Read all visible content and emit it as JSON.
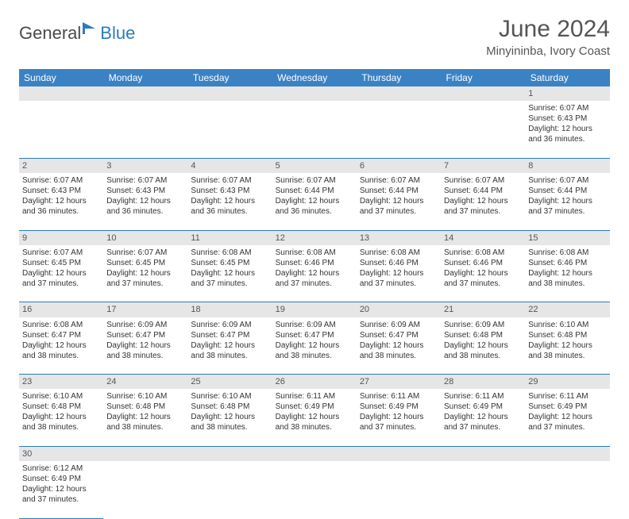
{
  "brand": {
    "main": "General",
    "sub": "Blue",
    "icon_color": "#2b7bbf",
    "main_color": "#4a4a4a"
  },
  "title": "June 2024",
  "location": "Minyininba, Ivory Coast",
  "header_bg": "#3b82c4",
  "header_fg": "#ffffff",
  "daynum_bg": "#e6e6e6",
  "border_color": "#2b7bbf",
  "text_color": "#333333",
  "title_fontsize": 30,
  "location_fontsize": 15,
  "cell_fontsize": 10,
  "daynum_fontsize": 11,
  "columns": [
    "Sunday",
    "Monday",
    "Tuesday",
    "Wednesday",
    "Thursday",
    "Friday",
    "Saturday"
  ],
  "weeks": [
    [
      null,
      null,
      null,
      null,
      null,
      null,
      {
        "n": "1",
        "sr": "Sunrise: 6:07 AM",
        "ss": "Sunset: 6:43 PM",
        "d1": "Daylight: 12 hours",
        "d2": "and 36 minutes."
      }
    ],
    [
      {
        "n": "2",
        "sr": "Sunrise: 6:07 AM",
        "ss": "Sunset: 6:43 PM",
        "d1": "Daylight: 12 hours",
        "d2": "and 36 minutes."
      },
      {
        "n": "3",
        "sr": "Sunrise: 6:07 AM",
        "ss": "Sunset: 6:43 PM",
        "d1": "Daylight: 12 hours",
        "d2": "and 36 minutes."
      },
      {
        "n": "4",
        "sr": "Sunrise: 6:07 AM",
        "ss": "Sunset: 6:43 PM",
        "d1": "Daylight: 12 hours",
        "d2": "and 36 minutes."
      },
      {
        "n": "5",
        "sr": "Sunrise: 6:07 AM",
        "ss": "Sunset: 6:44 PM",
        "d1": "Daylight: 12 hours",
        "d2": "and 36 minutes."
      },
      {
        "n": "6",
        "sr": "Sunrise: 6:07 AM",
        "ss": "Sunset: 6:44 PM",
        "d1": "Daylight: 12 hours",
        "d2": "and 37 minutes."
      },
      {
        "n": "7",
        "sr": "Sunrise: 6:07 AM",
        "ss": "Sunset: 6:44 PM",
        "d1": "Daylight: 12 hours",
        "d2": "and 37 minutes."
      },
      {
        "n": "8",
        "sr": "Sunrise: 6:07 AM",
        "ss": "Sunset: 6:44 PM",
        "d1": "Daylight: 12 hours",
        "d2": "and 37 minutes."
      }
    ],
    [
      {
        "n": "9",
        "sr": "Sunrise: 6:07 AM",
        "ss": "Sunset: 6:45 PM",
        "d1": "Daylight: 12 hours",
        "d2": "and 37 minutes."
      },
      {
        "n": "10",
        "sr": "Sunrise: 6:07 AM",
        "ss": "Sunset: 6:45 PM",
        "d1": "Daylight: 12 hours",
        "d2": "and 37 minutes."
      },
      {
        "n": "11",
        "sr": "Sunrise: 6:08 AM",
        "ss": "Sunset: 6:45 PM",
        "d1": "Daylight: 12 hours",
        "d2": "and 37 minutes."
      },
      {
        "n": "12",
        "sr": "Sunrise: 6:08 AM",
        "ss": "Sunset: 6:46 PM",
        "d1": "Daylight: 12 hours",
        "d2": "and 37 minutes."
      },
      {
        "n": "13",
        "sr": "Sunrise: 6:08 AM",
        "ss": "Sunset: 6:46 PM",
        "d1": "Daylight: 12 hours",
        "d2": "and 37 minutes."
      },
      {
        "n": "14",
        "sr": "Sunrise: 6:08 AM",
        "ss": "Sunset: 6:46 PM",
        "d1": "Daylight: 12 hours",
        "d2": "and 37 minutes."
      },
      {
        "n": "15",
        "sr": "Sunrise: 6:08 AM",
        "ss": "Sunset: 6:46 PM",
        "d1": "Daylight: 12 hours",
        "d2": "and 38 minutes."
      }
    ],
    [
      {
        "n": "16",
        "sr": "Sunrise: 6:08 AM",
        "ss": "Sunset: 6:47 PM",
        "d1": "Daylight: 12 hours",
        "d2": "and 38 minutes."
      },
      {
        "n": "17",
        "sr": "Sunrise: 6:09 AM",
        "ss": "Sunset: 6:47 PM",
        "d1": "Daylight: 12 hours",
        "d2": "and 38 minutes."
      },
      {
        "n": "18",
        "sr": "Sunrise: 6:09 AM",
        "ss": "Sunset: 6:47 PM",
        "d1": "Daylight: 12 hours",
        "d2": "and 38 minutes."
      },
      {
        "n": "19",
        "sr": "Sunrise: 6:09 AM",
        "ss": "Sunset: 6:47 PM",
        "d1": "Daylight: 12 hours",
        "d2": "and 38 minutes."
      },
      {
        "n": "20",
        "sr": "Sunrise: 6:09 AM",
        "ss": "Sunset: 6:47 PM",
        "d1": "Daylight: 12 hours",
        "d2": "and 38 minutes."
      },
      {
        "n": "21",
        "sr": "Sunrise: 6:09 AM",
        "ss": "Sunset: 6:48 PM",
        "d1": "Daylight: 12 hours",
        "d2": "and 38 minutes."
      },
      {
        "n": "22",
        "sr": "Sunrise: 6:10 AM",
        "ss": "Sunset: 6:48 PM",
        "d1": "Daylight: 12 hours",
        "d2": "and 38 minutes."
      }
    ],
    [
      {
        "n": "23",
        "sr": "Sunrise: 6:10 AM",
        "ss": "Sunset: 6:48 PM",
        "d1": "Daylight: 12 hours",
        "d2": "and 38 minutes."
      },
      {
        "n": "24",
        "sr": "Sunrise: 6:10 AM",
        "ss": "Sunset: 6:48 PM",
        "d1": "Daylight: 12 hours",
        "d2": "and 38 minutes."
      },
      {
        "n": "25",
        "sr": "Sunrise: 6:10 AM",
        "ss": "Sunset: 6:48 PM",
        "d1": "Daylight: 12 hours",
        "d2": "and 38 minutes."
      },
      {
        "n": "26",
        "sr": "Sunrise: 6:11 AM",
        "ss": "Sunset: 6:49 PM",
        "d1": "Daylight: 12 hours",
        "d2": "and 38 minutes."
      },
      {
        "n": "27",
        "sr": "Sunrise: 6:11 AM",
        "ss": "Sunset: 6:49 PM",
        "d1": "Daylight: 12 hours",
        "d2": "and 37 minutes."
      },
      {
        "n": "28",
        "sr": "Sunrise: 6:11 AM",
        "ss": "Sunset: 6:49 PM",
        "d1": "Daylight: 12 hours",
        "d2": "and 37 minutes."
      },
      {
        "n": "29",
        "sr": "Sunrise: 6:11 AM",
        "ss": "Sunset: 6:49 PM",
        "d1": "Daylight: 12 hours",
        "d2": "and 37 minutes."
      }
    ],
    [
      {
        "n": "30",
        "sr": "Sunrise: 6:12 AM",
        "ss": "Sunset: 6:49 PM",
        "d1": "Daylight: 12 hours",
        "d2": "and 37 minutes."
      },
      null,
      null,
      null,
      null,
      null,
      null
    ]
  ]
}
